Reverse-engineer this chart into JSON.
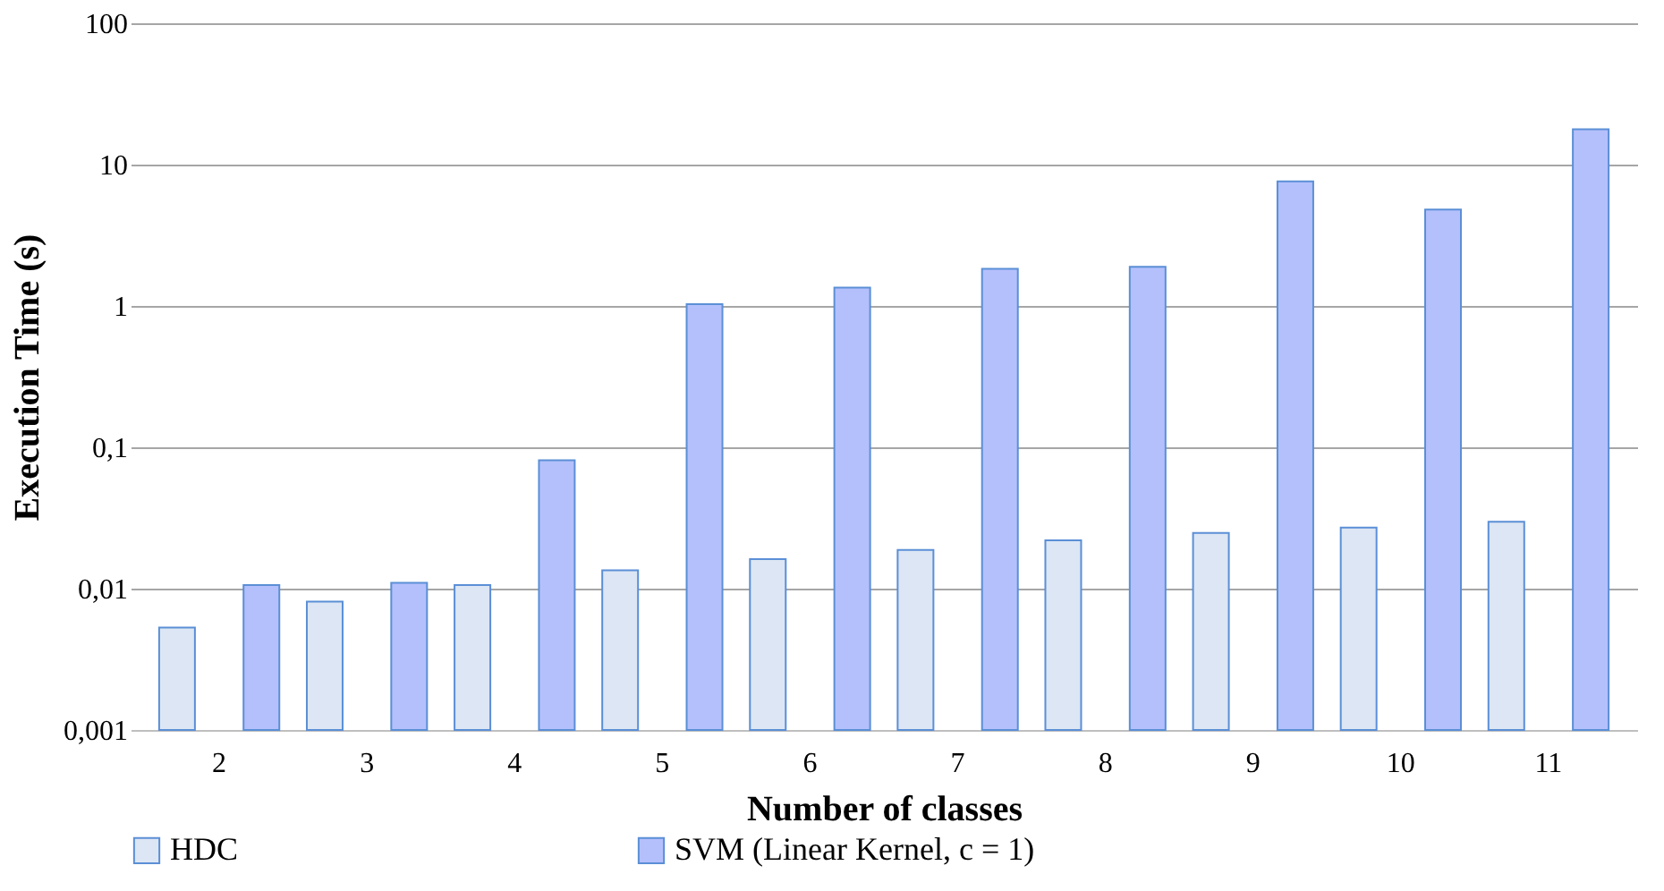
{
  "chart_data": {
    "type": "bar",
    "xlabel": "Number of classes",
    "ylabel": "Execution Time (s)",
    "categories": [
      "2",
      "3",
      "4",
      "5",
      "6",
      "7",
      "8",
      "9",
      "10",
      "11"
    ],
    "series": [
      {
        "name": "HDC",
        "color": "#dce6f4",
        "values": [
          0.0053,
          0.0081,
          0.0106,
          0.0135,
          0.0162,
          0.0188,
          0.022,
          0.0248,
          0.027,
          0.0297
        ]
      },
      {
        "name": "SVM (Linear Kernel, c = 1)",
        "color": "#b4c0fc",
        "values": [
          0.0106,
          0.011,
          0.081,
          1.03,
          1.35,
          1.83,
          1.89,
          7.6,
          4.8,
          17.8
        ]
      }
    ],
    "log": "y",
    "ylim": [
      0.001,
      100
    ],
    "yticks": [
      {
        "value": 0.001,
        "label": "0,001"
      },
      {
        "value": 0.01,
        "label": "0,01"
      },
      {
        "value": 0.1,
        "label": "0,1"
      },
      {
        "value": 1,
        "label": "1"
      },
      {
        "value": 10,
        "label": "10"
      },
      {
        "value": 100,
        "label": "100"
      }
    ],
    "grid": "y",
    "legend": "bottom"
  }
}
